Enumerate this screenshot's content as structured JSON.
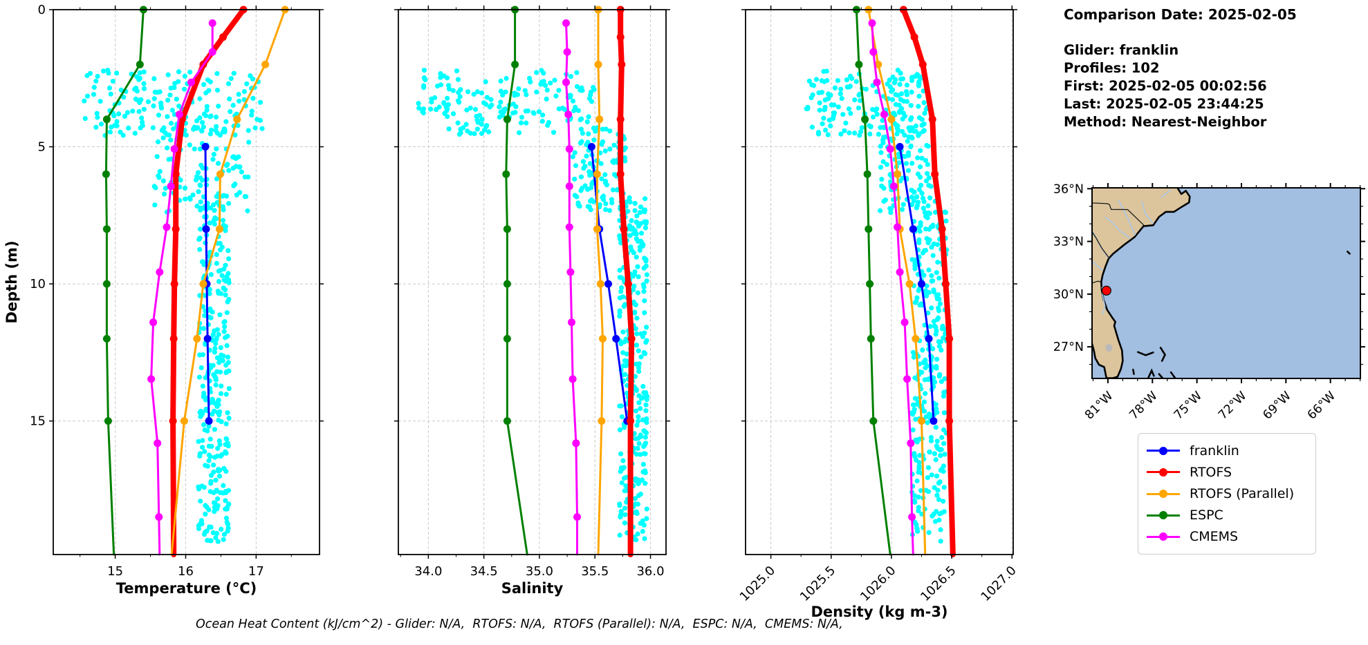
{
  "info_panel": {
    "comparison_date": "Comparison Date: 2025-02-05",
    "lines": [
      "Glider: franklin",
      "Profiles: 102",
      "First: 2025-02-05 00:02:56",
      "Last: 2025-02-05 23:44:25",
      "Method: Nearest-Neighbor"
    ]
  },
  "caption": "Ocean Heat Content (kJ/cm^2) - Glider: N/A,  RTOFS: N/A,  RTOFS (Parallel): N/A,  ESPC: N/A,  CMEMS: N/A,",
  "legend": {
    "entries": [
      {
        "label": "franklin",
        "color": "#0000ff"
      },
      {
        "label": "RTOFS",
        "color": "#ff0000"
      },
      {
        "label": "RTOFS (Parallel)",
        "color": "#ffa500"
      },
      {
        "label": "ESPC",
        "color": "#008000"
      },
      {
        "label": "CMEMS",
        "color": "#ff00ff"
      }
    ]
  },
  "ylabel": "Depth (m)",
  "yaxis": {
    "ylim": [
      0,
      19.87
    ],
    "ticks": [
      {
        "value": 0,
        "label": "0"
      },
      {
        "value": 5,
        "label": "5"
      },
      {
        "value": 10,
        "label": "10"
      },
      {
        "value": 15,
        "label": "15"
      }
    ]
  },
  "scatter_color": "#00ffff",
  "chart_data": [
    {
      "type": "line",
      "name": "temperature",
      "xlabel": "Temperature (°C)",
      "xlim": [
        14.12,
        17.9
      ],
      "xticks": [
        {
          "value": 15,
          "label": "15"
        },
        {
          "value": 16,
          "label": "16"
        },
        {
          "value": 17,
          "label": "17"
        }
      ],
      "minor_xticks": [
        14.5,
        15.5,
        16.5,
        17.5
      ],
      "rotate_xticks": false,
      "show_ytick_labels": true,
      "grid": true,
      "series": [
        {
          "name": "franklin",
          "color": "#0000ff",
          "line_width": 3,
          "points": [
            [
              5,
              16.28
            ],
            [
              8,
              16.29
            ],
            [
              10,
              16.3
            ],
            [
              12,
              16.31
            ],
            [
              15,
              16.33
            ]
          ],
          "tail": null
        },
        {
          "name": "RTOFS",
          "color": "#ff0000",
          "line_width": 8,
          "points": [
            [
              0,
              16.82
            ],
            [
              1,
              16.53
            ],
            [
              2,
              16.25
            ],
            [
              4,
              15.95
            ],
            [
              6,
              15.86
            ],
            [
              8,
              15.86
            ],
            [
              10,
              15.84
            ],
            [
              12,
              15.83
            ],
            [
              15,
              15.82
            ]
          ],
          "tail": [
            19.87,
            15.83
          ]
        },
        {
          "name": "RTOFS (Parallel)",
          "color": "#ffa500",
          "line_width": 3,
          "points": [
            [
              0,
              17.41
            ],
            [
              2,
              17.13
            ],
            [
              4,
              16.73
            ],
            [
              6,
              16.49
            ],
            [
              8,
              16.48
            ],
            [
              10,
              16.25
            ],
            [
              12,
              16.16
            ],
            [
              15,
              15.98
            ]
          ],
          "tail": [
            19.87,
            15.8
          ]
        },
        {
          "name": "ESPC",
          "color": "#008000",
          "line_width": 3,
          "points": [
            [
              0,
              15.4
            ],
            [
              2,
              15.35
            ],
            [
              4,
              14.88
            ],
            [
              6,
              14.87
            ],
            [
              8,
              14.88
            ],
            [
              10,
              14.88
            ],
            [
              12,
              14.88
            ],
            [
              15,
              14.9
            ]
          ],
          "tail": [
            19.87,
            14.98
          ]
        },
        {
          "name": "CMEMS",
          "color": "#ff00ff",
          "line_width": 3,
          "points": [
            [
              0.49,
              16.38
            ],
            [
              1.54,
              16.38
            ],
            [
              2.65,
              16.08
            ],
            [
              3.82,
              15.91
            ],
            [
              5.08,
              15.84
            ],
            [
              6.44,
              15.79
            ],
            [
              7.93,
              15.73
            ],
            [
              9.57,
              15.63
            ],
            [
              11.4,
              15.54
            ],
            [
              13.47,
              15.51
            ],
            [
              15.81,
              15.6
            ],
            [
              18.5,
              15.62
            ]
          ],
          "tail": [
            19.87,
            15.63
          ]
        }
      ],
      "glider_scatter": {
        "clusters": [
          {
            "n": 170,
            "x": [
              14.55,
              17.1
            ],
            "depth": [
              2.2,
              4.6
            ]
          },
          {
            "n": 110,
            "x": [
              15.55,
              16.9
            ],
            "depth": [
              4.3,
              7.4
            ]
          },
          {
            "n": 300,
            "x": [
              16.18,
              16.62
            ],
            "depth": [
              6.8,
              19.4
            ]
          }
        ]
      }
    },
    {
      "type": "line",
      "name": "salinity",
      "xlabel": "Salinity",
      "xlim": [
        33.73,
        36.14
      ],
      "xticks": [
        {
          "value": 34.0,
          "label": "34.0"
        },
        {
          "value": 34.5,
          "label": "34.5"
        },
        {
          "value": 35.0,
          "label": "35.0"
        },
        {
          "value": 35.5,
          "label": "35.5"
        },
        {
          "value": 36.0,
          "label": "36.0"
        }
      ],
      "minor_xticks": [
        33.75,
        34.25,
        34.75,
        35.25,
        35.75
      ],
      "rotate_xticks": false,
      "show_ytick_labels": false,
      "grid": true,
      "series": [
        {
          "name": "franklin",
          "color": "#0000ff",
          "line_width": 3,
          "points": [
            [
              5,
              35.47
            ],
            [
              8,
              35.54
            ],
            [
              10,
              35.62
            ],
            [
              12,
              35.69
            ],
            [
              15,
              35.79
            ]
          ],
          "tail": null
        },
        {
          "name": "RTOFS",
          "color": "#ff0000",
          "line_width": 8,
          "points": [
            [
              0,
              35.73
            ],
            [
              1,
              35.73
            ],
            [
              2,
              35.74
            ],
            [
              4,
              35.73
            ],
            [
              6,
              35.73
            ],
            [
              8,
              35.76
            ],
            [
              10,
              35.8
            ],
            [
              12,
              35.83
            ],
            [
              15,
              35.82
            ]
          ],
          "tail": [
            19.87,
            35.82
          ]
        },
        {
          "name": "RTOFS (Parallel)",
          "color": "#ffa500",
          "line_width": 3,
          "points": [
            [
              0,
              35.53
            ],
            [
              2,
              35.53
            ],
            [
              4,
              35.54
            ],
            [
              6,
              35.52
            ],
            [
              8,
              35.52
            ],
            [
              10,
              35.55
            ],
            [
              12,
              35.57
            ],
            [
              15,
              35.56
            ]
          ],
          "tail": [
            19.87,
            35.53
          ]
        },
        {
          "name": "ESPC",
          "color": "#008000",
          "line_width": 3,
          "points": [
            [
              0,
              34.78
            ],
            [
              2,
              34.78
            ],
            [
              4,
              34.71
            ],
            [
              6,
              34.7
            ],
            [
              8,
              34.71
            ],
            [
              10,
              34.71
            ],
            [
              12,
              34.71
            ],
            [
              15,
              34.71
            ]
          ],
          "tail": [
            19.87,
            34.89
          ]
        },
        {
          "name": "CMEMS",
          "color": "#ff00ff",
          "line_width": 3,
          "points": [
            [
              0.49,
              35.24
            ],
            [
              1.54,
              35.25
            ],
            [
              2.65,
              35.24
            ],
            [
              3.82,
              35.26
            ],
            [
              5.08,
              35.27
            ],
            [
              6.44,
              35.27
            ],
            [
              7.93,
              35.27
            ],
            [
              9.57,
              35.28
            ],
            [
              11.4,
              35.29
            ],
            [
              13.47,
              35.3
            ],
            [
              15.81,
              35.33
            ],
            [
              18.5,
              35.34
            ]
          ],
          "tail": [
            19.87,
            35.34
          ]
        }
      ],
      "glider_scatter": {
        "clusters": [
          {
            "n": 170,
            "x": [
              33.9,
              35.5
            ],
            "depth": [
              2.2,
              4.6
            ]
          },
          {
            "n": 110,
            "x": [
              35.3,
              35.78
            ],
            "depth": [
              4.3,
              7.4
            ]
          },
          {
            "n": 300,
            "x": [
              35.72,
              35.97
            ],
            "depth": [
              6.8,
              19.4
            ]
          }
        ]
      }
    },
    {
      "type": "line",
      "name": "density",
      "xlabel": "Density (kg m-3)",
      "xlim": [
        1024.79,
        1027.01
      ],
      "xticks": [
        {
          "value": 1025.0,
          "label": "1025.0"
        },
        {
          "value": 1025.5,
          "label": "1025.5"
        },
        {
          "value": 1026.0,
          "label": "1026.0"
        },
        {
          "value": 1026.5,
          "label": "1026.5"
        },
        {
          "value": 1027.0,
          "label": "1027.0"
        }
      ],
      "minor_xticks": [
        1025.25,
        1025.75,
        1026.25,
        1026.75
      ],
      "rotate_xticks": true,
      "show_ytick_labels": false,
      "grid": true,
      "series": [
        {
          "name": "franklin",
          "color": "#0000ff",
          "line_width": 3,
          "points": [
            [
              5,
              1026.07
            ],
            [
              8,
              1026.18
            ],
            [
              10,
              1026.25
            ],
            [
              12,
              1026.31
            ],
            [
              15,
              1026.35
            ]
          ],
          "tail": null
        },
        {
          "name": "RTOFS",
          "color": "#ff0000",
          "line_width": 8,
          "points": [
            [
              0,
              1026.1
            ],
            [
              1,
              1026.19
            ],
            [
              2,
              1026.26
            ],
            [
              4,
              1026.34
            ],
            [
              6,
              1026.36
            ],
            [
              8,
              1026.42
            ],
            [
              10,
              1026.45
            ],
            [
              12,
              1026.48
            ],
            [
              15,
              1026.48
            ]
          ],
          "tail": [
            19.87,
            1026.51
          ]
        },
        {
          "name": "RTOFS (Parallel)",
          "color": "#ffa500",
          "line_width": 3,
          "points": [
            [
              0,
              1025.81
            ],
            [
              2,
              1025.89
            ],
            [
              4,
              1026.0
            ],
            [
              6,
              1026.05
            ],
            [
              8,
              1026.07
            ],
            [
              10,
              1026.15
            ],
            [
              12,
              1026.2
            ],
            [
              15,
              1026.25
            ]
          ],
          "tail": [
            19.87,
            1026.28
          ]
        },
        {
          "name": "ESPC",
          "color": "#008000",
          "line_width": 3,
          "points": [
            [
              0,
              1025.71
            ],
            [
              2,
              1025.73
            ],
            [
              4,
              1025.78
            ],
            [
              6,
              1025.8
            ],
            [
              8,
              1025.81
            ],
            [
              10,
              1025.82
            ],
            [
              12,
              1025.83
            ],
            [
              15,
              1025.85
            ]
          ],
          "tail": [
            19.87,
            1025.99
          ]
        },
        {
          "name": "CMEMS",
          "color": "#ff00ff",
          "line_width": 3,
          "points": [
            [
              0.49,
              1025.84
            ],
            [
              1.54,
              1025.85
            ],
            [
              2.65,
              1025.88
            ],
            [
              3.82,
              1025.94
            ],
            [
              5.08,
              1025.99
            ],
            [
              6.44,
              1026.02
            ],
            [
              7.93,
              1026.05
            ],
            [
              9.57,
              1026.07
            ],
            [
              11.4,
              1026.11
            ],
            [
              13.47,
              1026.13
            ],
            [
              15.81,
              1026.16
            ],
            [
              18.5,
              1026.17
            ]
          ],
          "tail": [
            19.87,
            1026.18
          ]
        }
      ],
      "glider_scatter": {
        "clusters": [
          {
            "n": 170,
            "x": [
              1025.28,
              1026.3
            ],
            "depth": [
              2.2,
              4.6
            ]
          },
          {
            "n": 110,
            "x": [
              1025.9,
              1026.33
            ],
            "depth": [
              4.3,
              7.4
            ]
          },
          {
            "n": 300,
            "x": [
              1026.17,
              1026.46
            ],
            "depth": [
              6.8,
              19.4
            ]
          }
        ]
      }
    }
  ],
  "map": {
    "extent": {
      "lon_min": -82.07,
      "lon_max": -63.98,
      "lat_min": 25.2,
      "lat_max": 36.05
    },
    "lon_ticks": [
      {
        "deg": -81,
        "label": "81°W"
      },
      {
        "deg": -78,
        "label": "78°W"
      },
      {
        "deg": -75,
        "label": "75°W"
      },
      {
        "deg": -72,
        "label": "72°W"
      },
      {
        "deg": -69,
        "label": "69°W"
      },
      {
        "deg": -66,
        "label": "66°W"
      }
    ],
    "lat_ticks": [
      {
        "deg": 36,
        "label": "36°N"
      },
      {
        "deg": 33,
        "label": "33°N"
      },
      {
        "deg": 30,
        "label": "30°N"
      },
      {
        "deg": 27,
        "label": "27°N"
      }
    ],
    "glider_marker": {
      "lon": -81.1,
      "lat": 30.2,
      "color": "#ff0000"
    },
    "colors": {
      "ocean": "#a2bee0",
      "land": "#dcc49c",
      "coast": "#000000",
      "river": "#a9c9e8",
      "lake": "#b9b9b9",
      "border": "#1a1a1a"
    }
  }
}
